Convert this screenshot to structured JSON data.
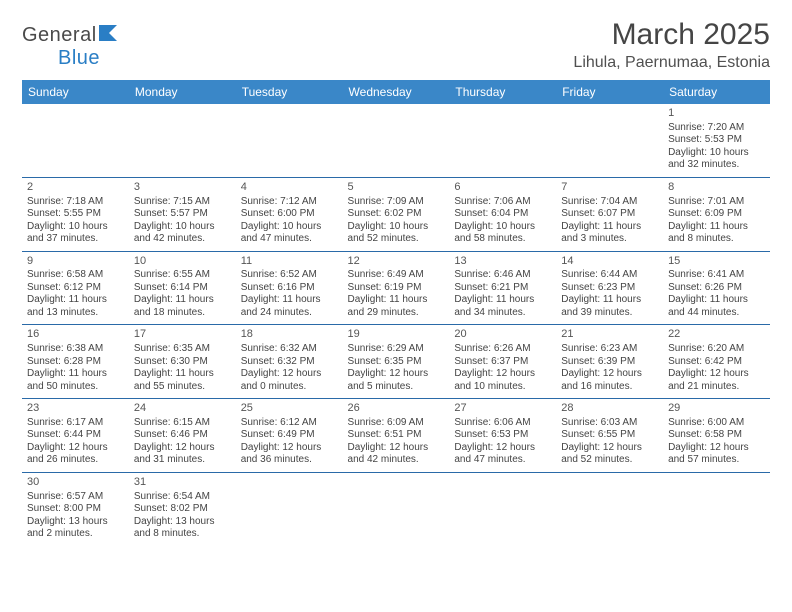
{
  "logo": {
    "text1": "General",
    "text2": "Blue",
    "flag_color": "#2a7ec5"
  },
  "title": "March 2025",
  "location": "Lihula, Paernumaa, Estonia",
  "colors": {
    "header_bg": "#3a87c8",
    "header_text": "#ffffff",
    "row_border": "#2a6aa8",
    "empty_bg": "#f0f0f0"
  },
  "day_headers": [
    "Sunday",
    "Monday",
    "Tuesday",
    "Wednesday",
    "Thursday",
    "Friday",
    "Saturday"
  ],
  "first_weekday": 6,
  "days": [
    {
      "n": 1,
      "sunrise": "7:20 AM",
      "sunset": "5:53 PM",
      "daylight": "10 hours and 32 minutes."
    },
    {
      "n": 2,
      "sunrise": "7:18 AM",
      "sunset": "5:55 PM",
      "daylight": "10 hours and 37 minutes."
    },
    {
      "n": 3,
      "sunrise": "7:15 AM",
      "sunset": "5:57 PM",
      "daylight": "10 hours and 42 minutes."
    },
    {
      "n": 4,
      "sunrise": "7:12 AM",
      "sunset": "6:00 PM",
      "daylight": "10 hours and 47 minutes."
    },
    {
      "n": 5,
      "sunrise": "7:09 AM",
      "sunset": "6:02 PM",
      "daylight": "10 hours and 52 minutes."
    },
    {
      "n": 6,
      "sunrise": "7:06 AM",
      "sunset": "6:04 PM",
      "daylight": "10 hours and 58 minutes."
    },
    {
      "n": 7,
      "sunrise": "7:04 AM",
      "sunset": "6:07 PM",
      "daylight": "11 hours and 3 minutes."
    },
    {
      "n": 8,
      "sunrise": "7:01 AM",
      "sunset": "6:09 PM",
      "daylight": "11 hours and 8 minutes."
    },
    {
      "n": 9,
      "sunrise": "6:58 AM",
      "sunset": "6:12 PM",
      "daylight": "11 hours and 13 minutes."
    },
    {
      "n": 10,
      "sunrise": "6:55 AM",
      "sunset": "6:14 PM",
      "daylight": "11 hours and 18 minutes."
    },
    {
      "n": 11,
      "sunrise": "6:52 AM",
      "sunset": "6:16 PM",
      "daylight": "11 hours and 24 minutes."
    },
    {
      "n": 12,
      "sunrise": "6:49 AM",
      "sunset": "6:19 PM",
      "daylight": "11 hours and 29 minutes."
    },
    {
      "n": 13,
      "sunrise": "6:46 AM",
      "sunset": "6:21 PM",
      "daylight": "11 hours and 34 minutes."
    },
    {
      "n": 14,
      "sunrise": "6:44 AM",
      "sunset": "6:23 PM",
      "daylight": "11 hours and 39 minutes."
    },
    {
      "n": 15,
      "sunrise": "6:41 AM",
      "sunset": "6:26 PM",
      "daylight": "11 hours and 44 minutes."
    },
    {
      "n": 16,
      "sunrise": "6:38 AM",
      "sunset": "6:28 PM",
      "daylight": "11 hours and 50 minutes."
    },
    {
      "n": 17,
      "sunrise": "6:35 AM",
      "sunset": "6:30 PM",
      "daylight": "11 hours and 55 minutes."
    },
    {
      "n": 18,
      "sunrise": "6:32 AM",
      "sunset": "6:32 PM",
      "daylight": "12 hours and 0 minutes."
    },
    {
      "n": 19,
      "sunrise": "6:29 AM",
      "sunset": "6:35 PM",
      "daylight": "12 hours and 5 minutes."
    },
    {
      "n": 20,
      "sunrise": "6:26 AM",
      "sunset": "6:37 PM",
      "daylight": "12 hours and 10 minutes."
    },
    {
      "n": 21,
      "sunrise": "6:23 AM",
      "sunset": "6:39 PM",
      "daylight": "12 hours and 16 minutes."
    },
    {
      "n": 22,
      "sunrise": "6:20 AM",
      "sunset": "6:42 PM",
      "daylight": "12 hours and 21 minutes."
    },
    {
      "n": 23,
      "sunrise": "6:17 AM",
      "sunset": "6:44 PM",
      "daylight": "12 hours and 26 minutes."
    },
    {
      "n": 24,
      "sunrise": "6:15 AM",
      "sunset": "6:46 PM",
      "daylight": "12 hours and 31 minutes."
    },
    {
      "n": 25,
      "sunrise": "6:12 AM",
      "sunset": "6:49 PM",
      "daylight": "12 hours and 36 minutes."
    },
    {
      "n": 26,
      "sunrise": "6:09 AM",
      "sunset": "6:51 PM",
      "daylight": "12 hours and 42 minutes."
    },
    {
      "n": 27,
      "sunrise": "6:06 AM",
      "sunset": "6:53 PM",
      "daylight": "12 hours and 47 minutes."
    },
    {
      "n": 28,
      "sunrise": "6:03 AM",
      "sunset": "6:55 PM",
      "daylight": "12 hours and 52 minutes."
    },
    {
      "n": 29,
      "sunrise": "6:00 AM",
      "sunset": "6:58 PM",
      "daylight": "12 hours and 57 minutes."
    },
    {
      "n": 30,
      "sunrise": "6:57 AM",
      "sunset": "8:00 PM",
      "daylight": "13 hours and 2 minutes."
    },
    {
      "n": 31,
      "sunrise": "6:54 AM",
      "sunset": "8:02 PM",
      "daylight": "13 hours and 8 minutes."
    }
  ],
  "labels": {
    "sunrise": "Sunrise:",
    "sunset": "Sunset:",
    "daylight": "Daylight:"
  }
}
